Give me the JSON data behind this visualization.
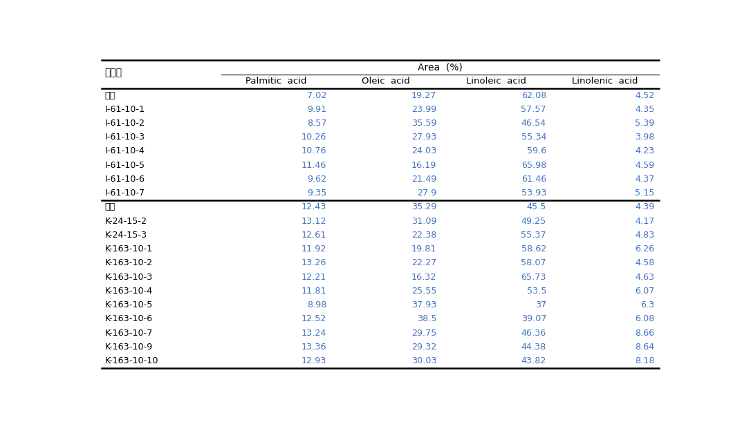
{
  "col_header_top": "Area  (%)",
  "col_header_sub": [
    "Palmitic  acid",
    "Oleic  acid",
    "Linoleic  acid",
    "Linolenic  acid"
  ],
  "row_header_label": "계통명",
  "rows": [
    [
      "일미",
      "7.02",
      "19.27",
      "62.08",
      "4.52"
    ],
    [
      "I-61-10-1",
      "9.91",
      "23.99",
      "57.57",
      "4.35"
    ],
    [
      "I-61-10-2",
      "8.57",
      "35.59",
      "46.54",
      "5.39"
    ],
    [
      "I-61-10-3",
      "10.26",
      "27.93",
      "55.34",
      "3.98"
    ],
    [
      "I-61-10-4",
      "10.76",
      "24.03",
      "59.6",
      "4.23"
    ],
    [
      "I-61-10-5",
      "11.46",
      "16.19",
      "65.98",
      "4.59"
    ],
    [
      "I-61-10-6",
      "9.62",
      "21.49",
      "61.46",
      "4.37"
    ],
    [
      "I-61-10-7",
      "9.35",
      "27.9",
      "53.93",
      "5.15"
    ],
    [
      "광안",
      "12.43",
      "35.29",
      "45.5",
      "4.39"
    ],
    [
      "K-24-15-2",
      "13.12",
      "31.09",
      "49.25",
      "4.17"
    ],
    [
      "K-24-15-3",
      "12.61",
      "22.38",
      "55.37",
      "4.83"
    ],
    [
      "K-163-10-1",
      "11.92",
      "19.81",
      "58.62",
      "6.26"
    ],
    [
      "K-163-10-2",
      "13.26",
      "22.27",
      "58.07",
      "4.58"
    ],
    [
      "K-163-10-3",
      "12.21",
      "16.32",
      "65.73",
      "4.63"
    ],
    [
      "K-163-10-4",
      "11.81",
      "25.55",
      "53.5",
      "6.07"
    ],
    [
      "K-163-10-5",
      "8.98",
      "37.93",
      "37",
      "6.3"
    ],
    [
      "K-163-10-6",
      "12.52",
      "38.5",
      "39.07",
      "6.08"
    ],
    [
      "K-163-10-7",
      "13.24",
      "29.75",
      "46.36",
      "8.66"
    ],
    [
      "K-163-10-9",
      "13.36",
      "29.32",
      "44.38",
      "8.64"
    ],
    [
      "K-163-10-10",
      "12.93",
      "30.03",
      "43.82",
      "8.18"
    ]
  ],
  "section_break_after": 7,
  "text_color_data": "#4472c4",
  "text_color_label": "#000000",
  "background_color": "#ffffff",
  "line_color": "#000000",
  "thick_lw": 1.8,
  "thin_lw": 0.8
}
